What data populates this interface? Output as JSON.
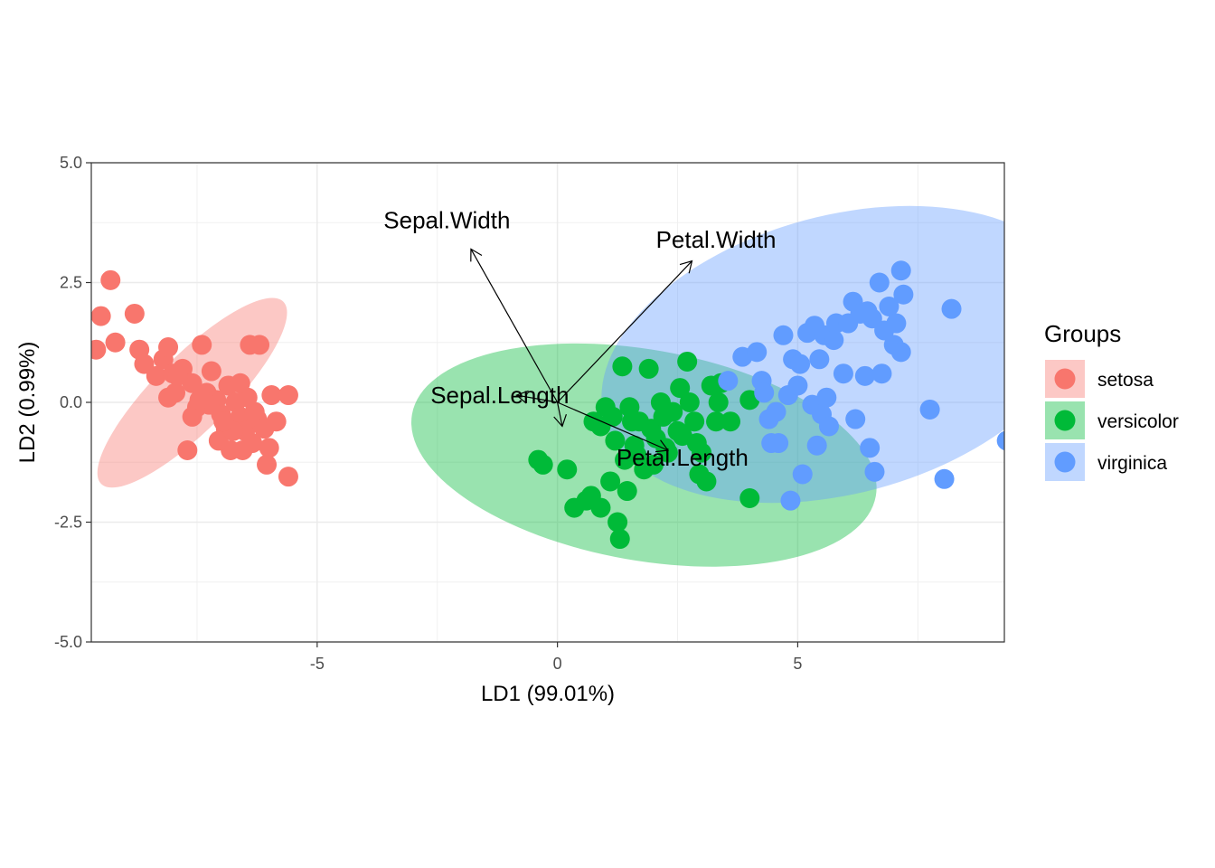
{
  "chart_data": {
    "type": "scatter",
    "title": "",
    "xlabel": "LD1 (99.01%)",
    "ylabel": "LD2 (0.99%)",
    "xlim": [
      -9.7,
      9.3
    ],
    "ylim": [
      -5,
      5
    ],
    "x_ticks": [
      -5,
      0,
      5
    ],
    "x_tick_labels": [
      "-5",
      "0",
      "5"
    ],
    "y_ticks": [
      -5,
      -2.5,
      0,
      2.5,
      5
    ],
    "y_tick_labels": [
      "-5.0",
      "-2.5",
      "0.0",
      "2.5",
      "5.0"
    ],
    "grid": true,
    "legend": {
      "title": "Groups",
      "position": "right",
      "items": [
        "setosa",
        "versicolor",
        "virginica"
      ]
    },
    "colors": {
      "setosa": "#F8766D",
      "versicolor": "#00BA38",
      "virginica": "#619CFF"
    },
    "ellipses": [
      {
        "group": "setosa",
        "center": [
          -7.6,
          0.2
        ],
        "rx": 2.68,
        "ry": 0.78,
        "rotation_deg": 45
      },
      {
        "group": "versicolor",
        "center": [
          1.8,
          -1.1
        ],
        "rx": 4.9,
        "ry": 2.2,
        "rotation_deg": -10
      },
      {
        "group": "virginica",
        "center": [
          5.9,
          1.0
        ],
        "rx": 5.1,
        "ry": 2.9,
        "rotation_deg": 15
      }
    ],
    "series": [
      {
        "name": "setosa",
        "points": [
          [
            -9.6,
            1.1
          ],
          [
            -9.5,
            1.8
          ],
          [
            -9.3,
            2.55
          ],
          [
            -9.2,
            1.25
          ],
          [
            -8.8,
            1.85
          ],
          [
            -8.7,
            1.1
          ],
          [
            -8.6,
            0.8
          ],
          [
            -8.35,
            0.55
          ],
          [
            -8.2,
            0.9
          ],
          [
            -8.1,
            1.15
          ],
          [
            -8.0,
            0.6
          ],
          [
            -7.95,
            0.2
          ],
          [
            -7.8,
            0.7
          ],
          [
            -7.6,
            0.4
          ],
          [
            -7.5,
            -0.1
          ],
          [
            -7.4,
            1.2
          ],
          [
            -7.3,
            0.2
          ],
          [
            -7.2,
            0.65
          ],
          [
            -7.1,
            0.05
          ],
          [
            -7.0,
            -0.25
          ],
          [
            -6.9,
            -0.55
          ],
          [
            -6.8,
            -1.0
          ],
          [
            -6.85,
            0.35
          ],
          [
            -7.05,
            -0.8
          ],
          [
            -6.7,
            0.0
          ],
          [
            -6.6,
            -0.3
          ],
          [
            -6.5,
            -0.6
          ],
          [
            -6.4,
            1.2
          ],
          [
            -6.3,
            -0.2
          ],
          [
            -6.35,
            -0.85
          ],
          [
            -6.55,
            -1.0
          ],
          [
            -6.45,
            0.1
          ],
          [
            -6.25,
            -0.35
          ],
          [
            -6.1,
            -0.55
          ],
          [
            -6.0,
            -0.95
          ],
          [
            -6.05,
            -1.3
          ],
          [
            -5.95,
            0.15
          ],
          [
            -5.85,
            -0.4
          ],
          [
            -7.7,
            -1.0
          ],
          [
            -7.6,
            -0.3
          ],
          [
            -6.75,
            -0.6
          ],
          [
            -5.6,
            -1.55
          ],
          [
            -5.6,
            0.15
          ],
          [
            -7.25,
            -0.05
          ],
          [
            -6.95,
            -0.4
          ],
          [
            -6.2,
            1.2
          ],
          [
            -7.9,
            0.55
          ],
          [
            -8.1,
            0.1
          ],
          [
            -6.6,
            0.4
          ],
          [
            -7.45,
            0.05
          ]
        ]
      },
      {
        "name": "versicolor",
        "points": [
          [
            -0.4,
            -1.2
          ],
          [
            -0.3,
            -1.3
          ],
          [
            0.2,
            -1.4
          ],
          [
            0.35,
            -2.2
          ],
          [
            0.6,
            -2.05
          ],
          [
            0.7,
            -1.95
          ],
          [
            0.9,
            -2.2
          ],
          [
            0.75,
            -0.4
          ],
          [
            0.9,
            -0.5
          ],
          [
            1.0,
            -0.1
          ],
          [
            1.1,
            -1.65
          ],
          [
            1.2,
            -0.8
          ],
          [
            1.25,
            -2.5
          ],
          [
            1.3,
            -2.85
          ],
          [
            1.35,
            0.75
          ],
          [
            1.4,
            -1.2
          ],
          [
            1.45,
            -1.85
          ],
          [
            1.5,
            -0.1
          ],
          [
            1.55,
            -0.4
          ],
          [
            1.6,
            -0.9
          ],
          [
            1.65,
            -1.1
          ],
          [
            1.7,
            -0.4
          ],
          [
            1.8,
            -1.4
          ],
          [
            1.9,
            0.7
          ],
          [
            1.95,
            -0.55
          ],
          [
            2.0,
            -1.3
          ],
          [
            2.05,
            -0.75
          ],
          [
            2.15,
            0.0
          ],
          [
            2.2,
            -0.3
          ],
          [
            2.3,
            -1.05
          ],
          [
            2.4,
            -0.2
          ],
          [
            2.5,
            -0.6
          ],
          [
            2.55,
            0.3
          ],
          [
            2.6,
            -0.7
          ],
          [
            2.7,
            0.85
          ],
          [
            2.75,
            0.0
          ],
          [
            2.85,
            -0.4
          ],
          [
            2.9,
            -0.85
          ],
          [
            3.0,
            -1.05
          ],
          [
            2.95,
            -1.5
          ],
          [
            3.1,
            -1.65
          ],
          [
            3.2,
            0.35
          ],
          [
            3.3,
            -0.4
          ],
          [
            3.35,
            0.0
          ],
          [
            3.4,
            0.4
          ],
          [
            3.6,
            -0.4
          ],
          [
            4.0,
            -2.0
          ],
          [
            4.0,
            0.05
          ],
          [
            1.15,
            -0.3
          ],
          [
            2.25,
            -0.95
          ]
        ]
      },
      {
        "name": "virginica",
        "points": [
          [
            3.55,
            0.45
          ],
          [
            3.85,
            0.95
          ],
          [
            4.15,
            1.05
          ],
          [
            4.25,
            0.45
          ],
          [
            4.3,
            0.2
          ],
          [
            4.4,
            -0.35
          ],
          [
            4.45,
            -0.85
          ],
          [
            4.55,
            -0.2
          ],
          [
            4.6,
            -0.85
          ],
          [
            4.7,
            1.4
          ],
          [
            4.8,
            0.15
          ],
          [
            4.85,
            -2.05
          ],
          [
            4.9,
            0.9
          ],
          [
            5.0,
            0.35
          ],
          [
            5.05,
            0.8
          ],
          [
            5.1,
            -1.5
          ],
          [
            5.2,
            1.45
          ],
          [
            5.3,
            -0.05
          ],
          [
            5.35,
            1.6
          ],
          [
            5.4,
            -0.9
          ],
          [
            5.45,
            0.9
          ],
          [
            5.5,
            -0.25
          ],
          [
            5.55,
            1.4
          ],
          [
            5.6,
            0.1
          ],
          [
            5.65,
            -0.5
          ],
          [
            5.75,
            1.3
          ],
          [
            5.8,
            1.65
          ],
          [
            5.95,
            0.6
          ],
          [
            6.05,
            1.65
          ],
          [
            6.15,
            2.1
          ],
          [
            6.2,
            -0.35
          ],
          [
            6.3,
            1.85
          ],
          [
            6.4,
            0.55
          ],
          [
            6.5,
            -0.95
          ],
          [
            6.55,
            1.75
          ],
          [
            6.6,
            -1.45
          ],
          [
            6.7,
            2.5
          ],
          [
            6.75,
            0.6
          ],
          [
            6.8,
            1.5
          ],
          [
            6.9,
            2.0
          ],
          [
            7.0,
            1.2
          ],
          [
            7.05,
            1.65
          ],
          [
            7.15,
            2.75
          ],
          [
            7.2,
            2.25
          ],
          [
            7.15,
            1.05
          ],
          [
            7.75,
            -0.15
          ],
          [
            8.05,
            -1.6
          ],
          [
            8.2,
            1.95
          ],
          [
            9.35,
            -0.8
          ],
          [
            6.45,
            1.9
          ]
        ]
      }
    ],
    "arrows": [
      {
        "label": "Sepal.Width",
        "to": [
          -1.8,
          3.2
        ],
        "label_at": [
          -2.3,
          3.8
        ]
      },
      {
        "label": "Petal.Width",
        "to": [
          2.8,
          2.95
        ],
        "label_at": [
          3.3,
          3.4
        ]
      },
      {
        "label": "Sepal.Length",
        "to": [
          -0.85,
          0.15
        ],
        "label_at": [
          -1.2,
          0.15
        ]
      },
      {
        "label": "Petal.Length",
        "to": [
          2.3,
          -1.0
        ],
        "label_at": [
          2.6,
          -1.15
        ]
      },
      {
        "label": "",
        "to": [
          0.1,
          -0.5
        ],
        "label_at": null
      }
    ]
  }
}
